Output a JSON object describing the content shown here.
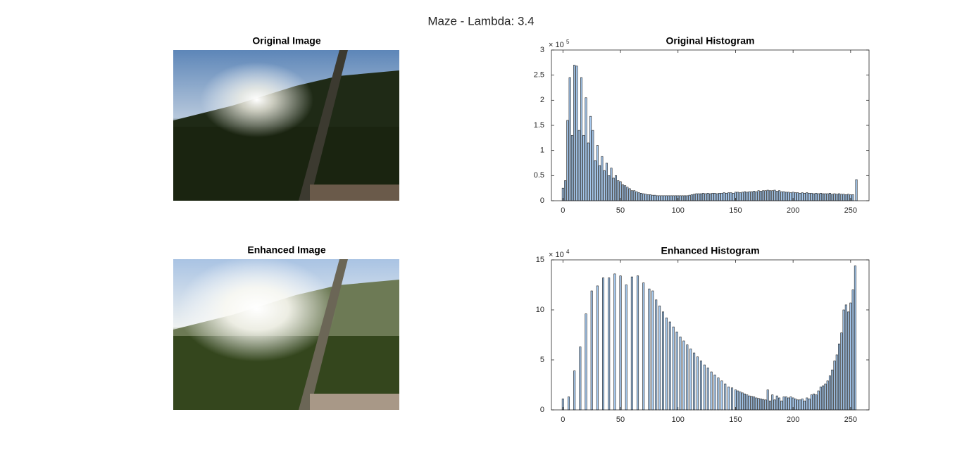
{
  "title": "Maze - Lambda: 3.4",
  "images": [
    {
      "title": "Original Image"
    },
    {
      "title": "Enhanced Image"
    }
  ],
  "chart_data": [
    {
      "type": "bar",
      "title": "Original Histogram",
      "color": "#a6caf0",
      "edgecolor": "#1a1a1a",
      "xlim": [
        -10,
        266
      ],
      "ylim": [
        0,
        3
      ],
      "xticks": [
        0,
        50,
        100,
        150,
        200,
        250
      ],
      "yticks": [
        0,
        0.5,
        1,
        1.5,
        2,
        2.5,
        3
      ],
      "y_exponent": {
        "base": "× 10",
        "power": "5"
      },
      "x": [
        0,
        2,
        4,
        6,
        8,
        10,
        12,
        14,
        16,
        18,
        20,
        22,
        24,
        26,
        28,
        30,
        32,
        34,
        36,
        38,
        40,
        42,
        44,
        46,
        48,
        50,
        52,
        54,
        56,
        58,
        60,
        62,
        64,
        66,
        68,
        70,
        72,
        74,
        76,
        78,
        80,
        82,
        84,
        86,
        88,
        90,
        92,
        94,
        96,
        98,
        100,
        102,
        104,
        106,
        108,
        110,
        112,
        114,
        116,
        118,
        120,
        122,
        124,
        126,
        128,
        130,
        132,
        134,
        136,
        138,
        140,
        142,
        144,
        146,
        148,
        150,
        152,
        154,
        156,
        158,
        160,
        162,
        164,
        166,
        168,
        170,
        172,
        174,
        176,
        178,
        180,
        182,
        184,
        186,
        188,
        190,
        192,
        194,
        196,
        198,
        200,
        202,
        204,
        206,
        208,
        210,
        212,
        214,
        216,
        218,
        220,
        222,
        224,
        226,
        228,
        230,
        232,
        234,
        236,
        238,
        240,
        242,
        244,
        246,
        248,
        250,
        252,
        255
      ],
      "values": [
        0.25,
        0.4,
        1.6,
        2.45,
        1.3,
        2.7,
        2.68,
        1.4,
        2.45,
        1.3,
        2.05,
        1.15,
        1.68,
        1.4,
        0.8,
        1.1,
        0.7,
        0.88,
        0.6,
        0.75,
        0.5,
        0.65,
        0.45,
        0.5,
        0.4,
        0.38,
        0.32,
        0.3,
        0.27,
        0.24,
        0.2,
        0.2,
        0.18,
        0.16,
        0.15,
        0.14,
        0.13,
        0.12,
        0.12,
        0.11,
        0.11,
        0.1,
        0.1,
        0.1,
        0.1,
        0.1,
        0.1,
        0.1,
        0.1,
        0.1,
        0.1,
        0.1,
        0.1,
        0.1,
        0.1,
        0.11,
        0.12,
        0.13,
        0.14,
        0.14,
        0.14,
        0.15,
        0.14,
        0.15,
        0.14,
        0.15,
        0.15,
        0.14,
        0.15,
        0.15,
        0.16,
        0.15,
        0.16,
        0.16,
        0.15,
        0.17,
        0.17,
        0.16,
        0.17,
        0.18,
        0.17,
        0.18,
        0.18,
        0.19,
        0.18,
        0.2,
        0.19,
        0.2,
        0.2,
        0.21,
        0.2,
        0.2,
        0.21,
        0.19,
        0.2,
        0.18,
        0.18,
        0.17,
        0.17,
        0.16,
        0.17,
        0.16,
        0.16,
        0.15,
        0.16,
        0.15,
        0.16,
        0.15,
        0.15,
        0.14,
        0.15,
        0.14,
        0.15,
        0.14,
        0.14,
        0.14,
        0.15,
        0.13,
        0.14,
        0.13,
        0.14,
        0.13,
        0.13,
        0.12,
        0.13,
        0.12,
        0.12,
        0.42
      ]
    },
    {
      "type": "bar",
      "title": "Enhanced Histogram",
      "color": "#a6caf0",
      "edgecolor": "#1a1a1a",
      "xlim": [
        -10,
        266
      ],
      "ylim": [
        0,
        15
      ],
      "xticks": [
        0,
        50,
        100,
        150,
        200,
        250
      ],
      "yticks": [
        0,
        5,
        10,
        15
      ],
      "y_exponent": {
        "base": "× 10",
        "power": "4"
      },
      "x": [
        0,
        5,
        10,
        15,
        20,
        25,
        30,
        35,
        40,
        45,
        50,
        55,
        60,
        65,
        70,
        75,
        78,
        81,
        84,
        87,
        90,
        93,
        96,
        99,
        102,
        105,
        108,
        111,
        114,
        117,
        120,
        123,
        126,
        129,
        132,
        135,
        138,
        141,
        144,
        147,
        150,
        152,
        154,
        156,
        158,
        160,
        162,
        164,
        166,
        168,
        170,
        172,
        174,
        176,
        178,
        180,
        182,
        184,
        186,
        188,
        190,
        192,
        194,
        196,
        198,
        200,
        202,
        204,
        206,
        208,
        210,
        212,
        214,
        216,
        218,
        220,
        222,
        224,
        226,
        228,
        230,
        232,
        234,
        236,
        238,
        240,
        242,
        244,
        246,
        248,
        250,
        252,
        254
      ],
      "values": [
        1.1,
        1.3,
        3.9,
        6.3,
        9.6,
        11.9,
        12.4,
        13.2,
        13.2,
        13.6,
        13.4,
        12.5,
        13.3,
        13.4,
        12.7,
        12.1,
        11.9,
        11.0,
        10.4,
        9.8,
        9.2,
        8.8,
        8.3,
        7.8,
        7.3,
        6.9,
        6.5,
        6.1,
        5.7,
        5.3,
        4.9,
        4.5,
        4.2,
        3.8,
        3.5,
        3.2,
        2.9,
        2.6,
        2.3,
        2.2,
        2.0,
        1.9,
        1.8,
        1.7,
        1.6,
        1.5,
        1.4,
        1.35,
        1.3,
        1.2,
        1.15,
        1.1,
        1.05,
        1.0,
        2.0,
        0.9,
        1.5,
        1.0,
        1.4,
        1.2,
        0.9,
        1.3,
        1.3,
        1.2,
        1.3,
        1.2,
        1.1,
        1.0,
        1.0,
        1.1,
        0.9,
        1.2,
        1.1,
        1.5,
        1.6,
        1.5,
        1.9,
        2.3,
        2.4,
        2.6,
        2.9,
        3.4,
        4.0,
        4.9,
        5.5,
        6.6,
        7.7,
        10.0,
        10.5,
        9.8,
        10.7,
        12.0,
        14.4
      ]
    }
  ]
}
